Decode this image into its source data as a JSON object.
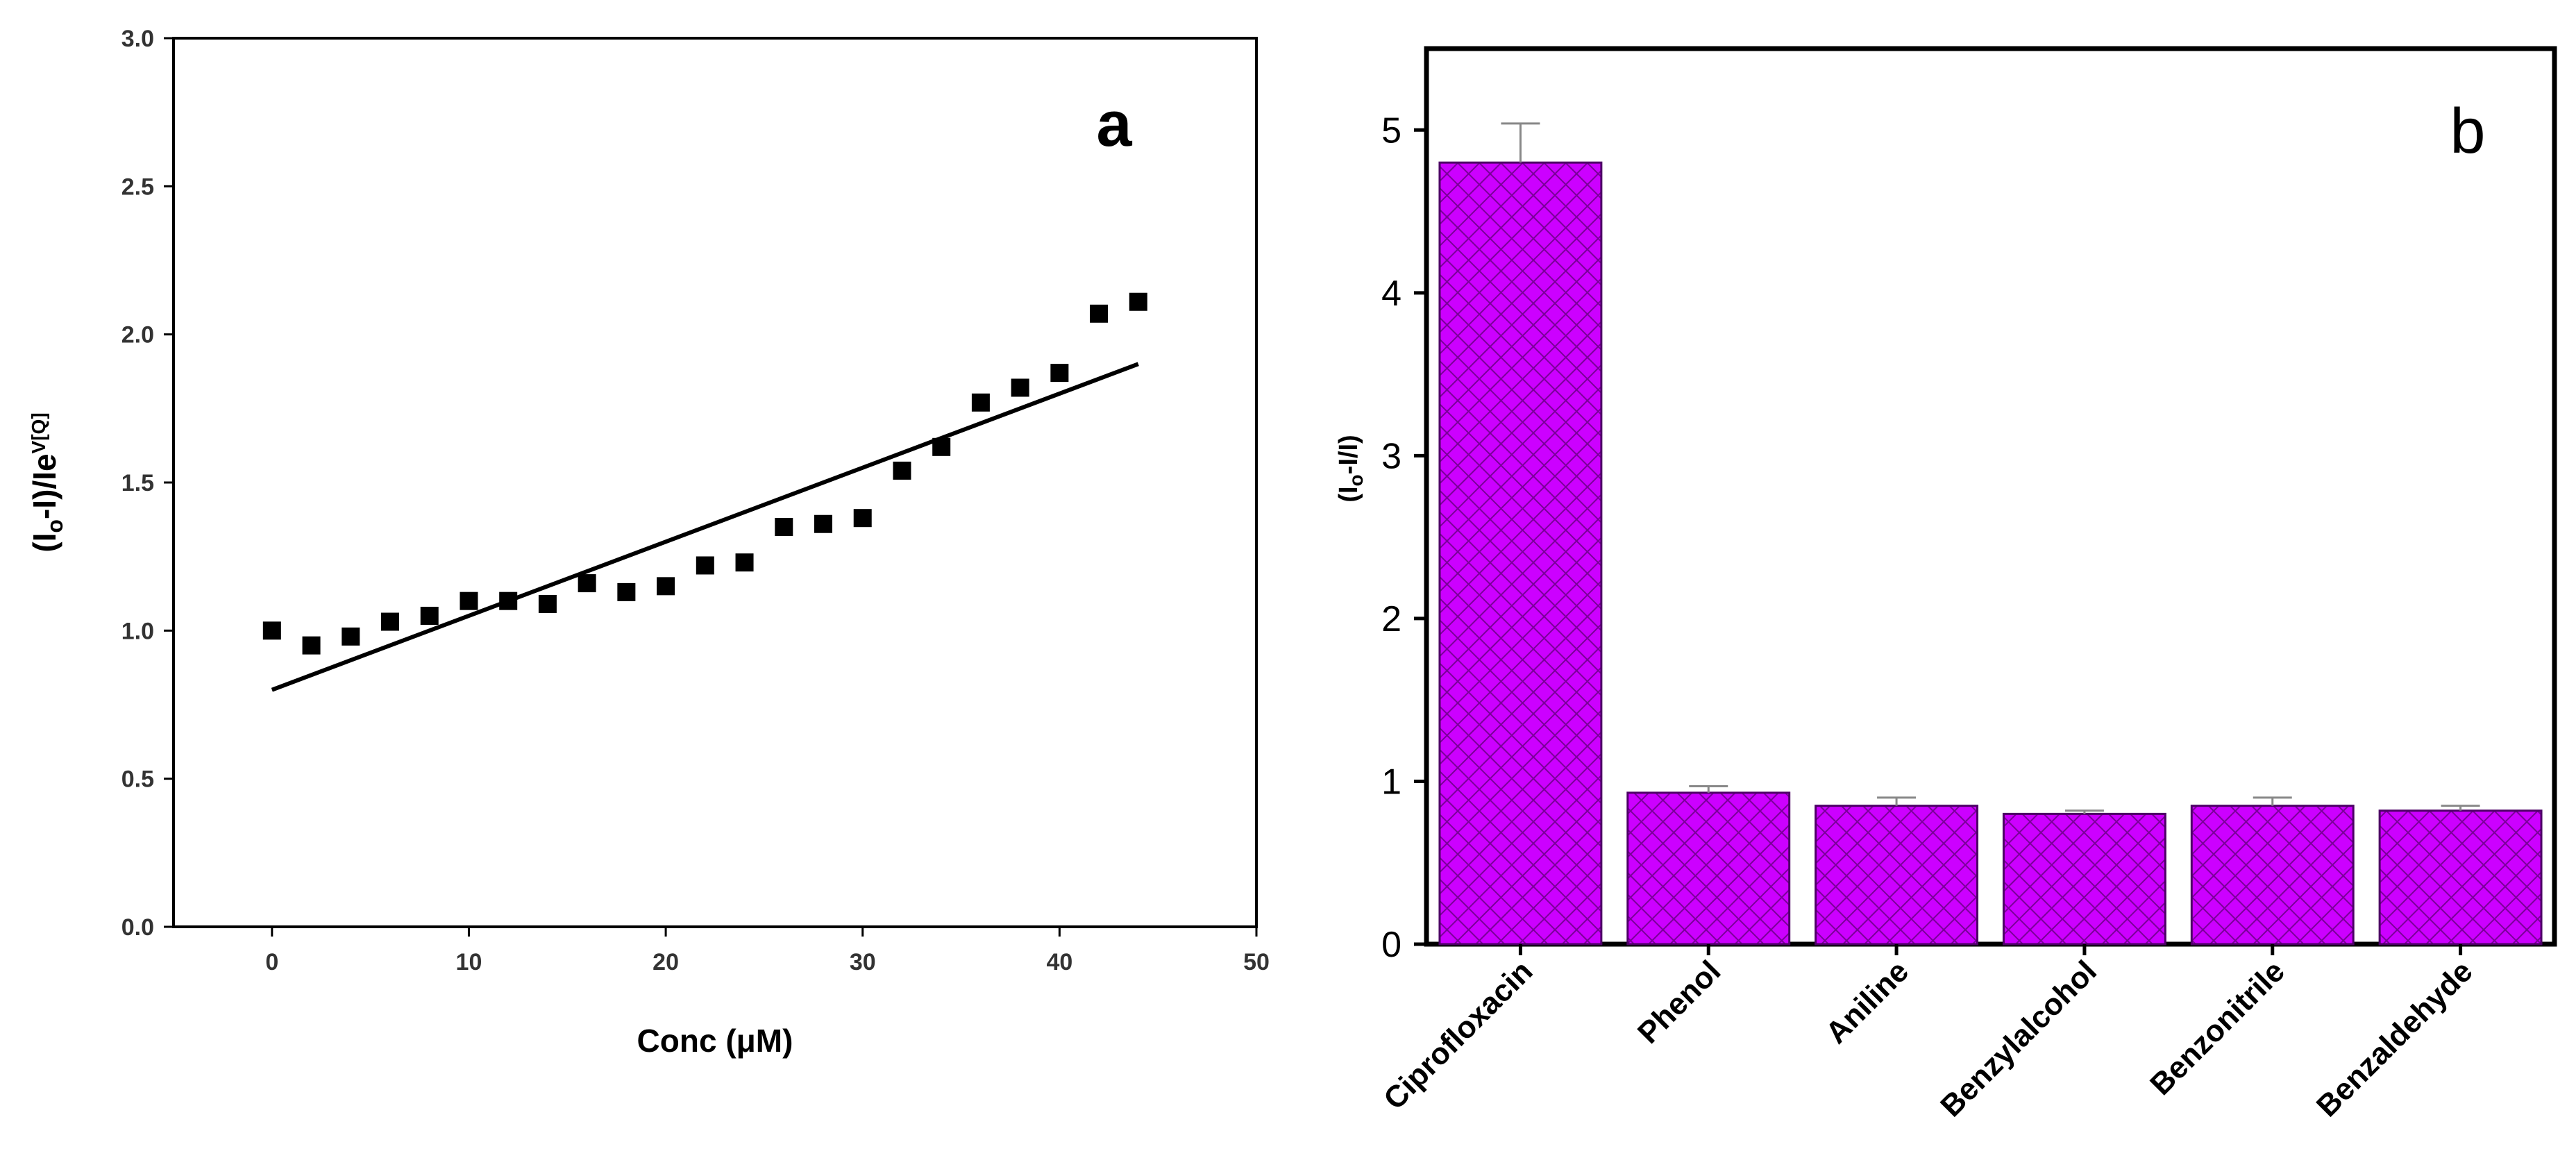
{
  "chart_data": [
    {
      "panel": "a",
      "type": "scatter",
      "title": "",
      "xlabel": "Conc (μM)",
      "ylabel_main": "(I",
      "ylabel_sub": "o",
      "ylabel_mid": "-I)/Ie",
      "ylabel_sup": "V[Q]",
      "xlim": [
        -5,
        50
      ],
      "ylim": [
        0,
        3.0
      ],
      "xticks": [
        0,
        10,
        20,
        30,
        40,
        50
      ],
      "xtick_labels": [
        "0",
        "10",
        "20",
        "30",
        "40",
        "50"
      ],
      "yticks": [
        0,
        0.5,
        1.0,
        1.5,
        2.0,
        2.5,
        3.0
      ],
      "ytick_labels": [
        "0.0",
        "0.5",
        "1.0",
        "1.5",
        "2.0",
        "2.5",
        "3.0"
      ],
      "points": {
        "x": [
          0,
          2,
          4,
          6,
          8,
          10,
          12,
          14,
          16,
          18,
          20,
          22,
          24,
          26,
          28,
          30,
          32,
          34,
          36,
          38,
          40,
          42,
          44
        ],
        "y": [
          1.0,
          0.95,
          0.98,
          1.03,
          1.05,
          1.1,
          1.1,
          1.09,
          1.16,
          1.13,
          1.15,
          1.22,
          1.23,
          1.35,
          1.36,
          1.38,
          1.54,
          1.62,
          1.77,
          1.82,
          1.87,
          2.07,
          2.11
        ]
      },
      "fit_line": {
        "x": [
          0,
          44
        ],
        "y": [
          0.8,
          1.9
        ]
      },
      "panel_label": "a",
      "grid": false,
      "legend": "none"
    },
    {
      "panel": "b",
      "type": "bar",
      "title": "",
      "xlabel": "",
      "ylabel_main": "(I",
      "ylabel_sub": "o",
      "ylabel_rest": "-I/I)",
      "ylim": [
        0,
        5.5
      ],
      "yticks": [
        0,
        1,
        2,
        3,
        4,
        5
      ],
      "ytick_labels": [
        "0",
        "1",
        "2",
        "3",
        "4",
        "5"
      ],
      "categories": [
        "Ciprofloxacin",
        "Phenol",
        "Aniline",
        "Benzylalcohol",
        "Benzonitrile",
        "Benzaldehyde"
      ],
      "values": [
        4.8,
        0.93,
        0.85,
        0.8,
        0.85,
        0.82
      ],
      "errors": [
        0.24,
        0.04,
        0.05,
        0.02,
        0.05,
        0.03
      ],
      "bar_color": "#cc00ff",
      "hatch_color": "#7a0099",
      "panel_label": "b",
      "grid": false,
      "legend": "none"
    }
  ]
}
